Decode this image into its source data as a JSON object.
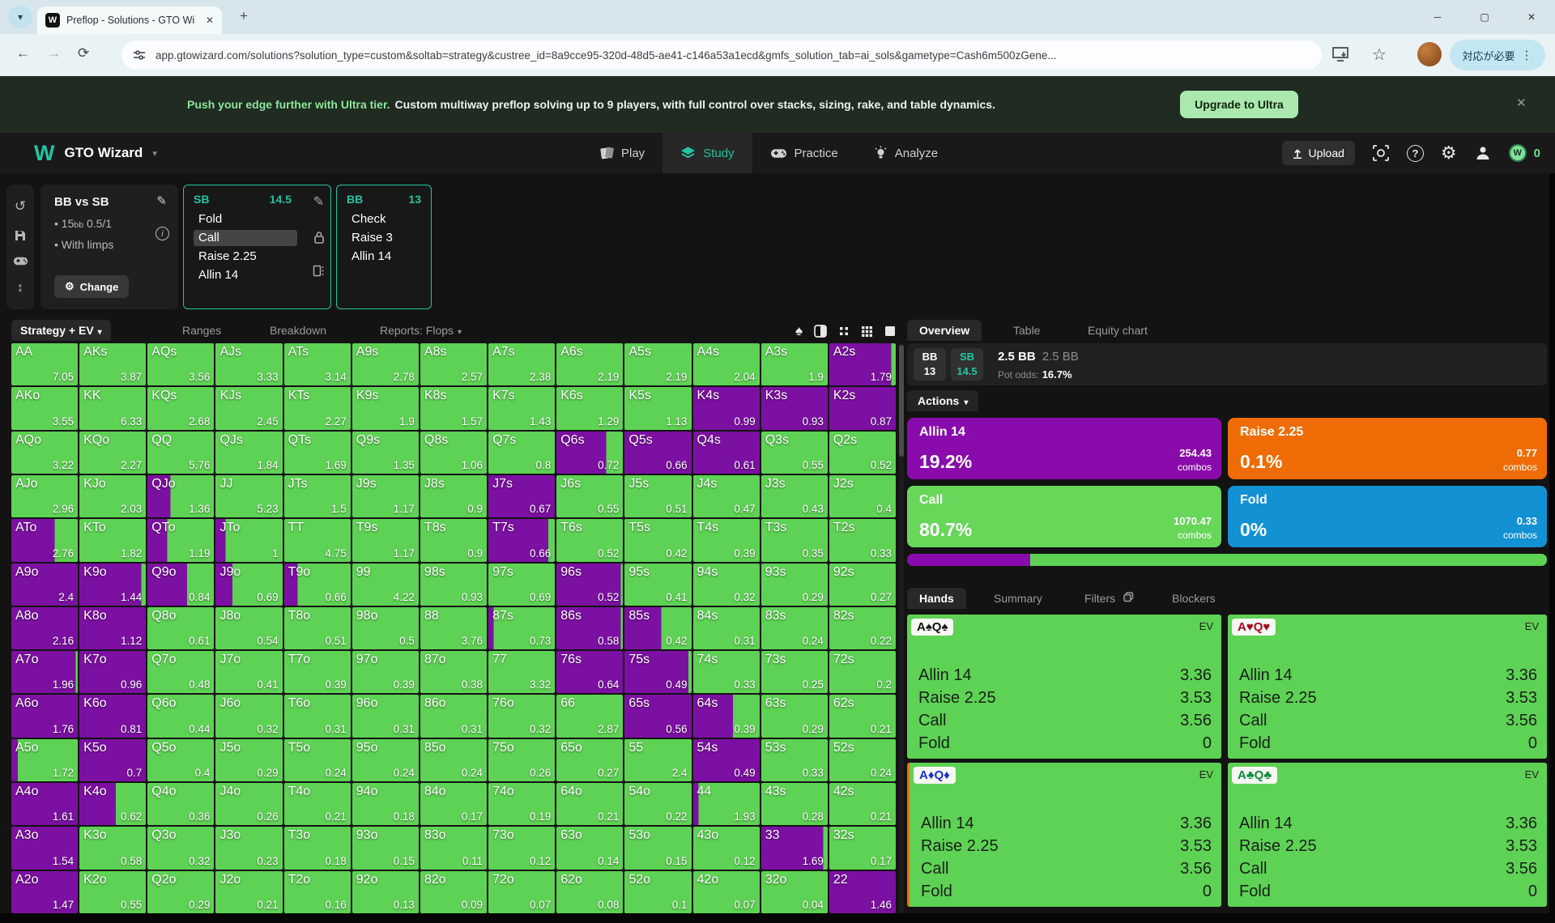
{
  "icons": {
    "caret": "▾",
    "close": "✕",
    "plus": "+",
    "minimize": "─",
    "maximize": "▢",
    "back": "←",
    "forward": "→",
    "reload": "⟳",
    "star": "☆",
    "menu_dots": "⋮",
    "history": "↺",
    "updown": "↕",
    "pencil": "✎",
    "gear": "⚙",
    "bullet": "•",
    "info": "i",
    "question": "?",
    "favicon_w": "W",
    "brand_w": "W",
    "coin_w": "W"
  },
  "browser": {
    "tab_title": "Preflop - Solutions - GTO Wizar",
    "url": "app.gtowizard.com/solutions?solution_type=custom&soltab=strategy&custree_id=8a9cce95-320d-48d5-ae41-c146a53a1ecd&gmfs_solution_tab=ai_sols&gametype=Cash6m500zGene...",
    "attention": "対応が必要"
  },
  "banner": {
    "highlight": "Push your edge further with Ultra tier.",
    "message": "Custom multiway preflop solving up to 9 players, with full control over stacks, sizing, rake, and table dynamics.",
    "cta": "Upgrade to Ultra"
  },
  "header": {
    "brand": "GTO Wizard",
    "nav": [
      "Play",
      "Study",
      "Practice",
      "Analyze"
    ],
    "upload": "Upload",
    "coins": "0"
  },
  "config": {
    "title": "BB vs SB",
    "stack": "15",
    "stack_unit": "bb",
    "blinds": "0.5/1",
    "option": "With limps",
    "change": "Change"
  },
  "sb_panel": {
    "pos": "SB",
    "stack": "14.5",
    "actions": [
      "Fold",
      "Call",
      "Raise 2.25",
      "Allin 14"
    ],
    "selected": "Call"
  },
  "bb_panel": {
    "pos": "BB",
    "stack": "13",
    "actions": [
      "Check",
      "Raise 3",
      "Allin 14"
    ]
  },
  "toolbar": {
    "tabs": [
      "Strategy + EV",
      "Ranges",
      "Breakdown",
      "Reports: Flops"
    ]
  },
  "matrix": {
    "legend": {
      "call_color": "#5ed254",
      "allin_color": "#7c10a2"
    },
    "cells": [
      [
        "AA",
        "7.05",
        0
      ],
      [
        "AKs",
        "3.87",
        0
      ],
      [
        "AQs",
        "3.56",
        0
      ],
      [
        "AJs",
        "3.33",
        0
      ],
      [
        "ATs",
        "3.14",
        0
      ],
      [
        "A9s",
        "2.78",
        0
      ],
      [
        "A8s",
        "2.57",
        0
      ],
      [
        "A7s",
        "2.38",
        0
      ],
      [
        "A6s",
        "2.19",
        0
      ],
      [
        "A5s",
        "2.19",
        0
      ],
      [
        "A4s",
        "2.04",
        0
      ],
      [
        "A3s",
        "1.9",
        0
      ],
      [
        "A2s",
        "1.79",
        0.93
      ],
      [
        "AKo",
        "3.55",
        0
      ],
      [
        "KK",
        "6.33",
        0
      ],
      [
        "KQs",
        "2.68",
        0
      ],
      [
        "KJs",
        "2.45",
        0
      ],
      [
        "KTs",
        "2.27",
        0
      ],
      [
        "K9s",
        "1.9",
        0
      ],
      [
        "K8s",
        "1.57",
        0
      ],
      [
        "K7s",
        "1.43",
        0
      ],
      [
        "K6s",
        "1.29",
        0
      ],
      [
        "K5s",
        "1.13",
        0
      ],
      [
        "K4s",
        "0.99",
        1
      ],
      [
        "K3s",
        "0.93",
        1
      ],
      [
        "K2s",
        "0.87",
        1
      ],
      [
        "AQo",
        "3.22",
        0
      ],
      [
        "KQo",
        "2.27",
        0
      ],
      [
        "QQ",
        "5.76",
        0
      ],
      [
        "QJs",
        "1.84",
        0
      ],
      [
        "QTs",
        "1.69",
        0
      ],
      [
        "Q9s",
        "1.35",
        0
      ],
      [
        "Q8s",
        "1.06",
        0
      ],
      [
        "Q7s",
        "0.8",
        0
      ],
      [
        "Q6s",
        "0.72",
        0.75
      ],
      [
        "Q5s",
        "0.66",
        1
      ],
      [
        "Q4s",
        "0.61",
        1
      ],
      [
        "Q3s",
        "0.55",
        0
      ],
      [
        "Q2s",
        "0.52",
        0
      ],
      [
        "AJo",
        "2.96",
        0
      ],
      [
        "KJo",
        "2.03",
        0
      ],
      [
        "QJo",
        "1.36",
        0.35
      ],
      [
        "JJ",
        "5.23",
        0
      ],
      [
        "JTs",
        "1.5",
        0
      ],
      [
        "J9s",
        "1.17",
        0
      ],
      [
        "J8s",
        "0.9",
        0
      ],
      [
        "J7s",
        "0.67",
        1
      ],
      [
        "J6s",
        "0.55",
        0
      ],
      [
        "J5s",
        "0.51",
        0
      ],
      [
        "J4s",
        "0.47",
        0
      ],
      [
        "J3s",
        "0.43",
        0
      ],
      [
        "J2s",
        "0.4",
        0
      ],
      [
        "ATo",
        "2.76",
        0.65
      ],
      [
        "KTo",
        "1.82",
        0
      ],
      [
        "QTo",
        "1.19",
        0.3
      ],
      [
        "JTo",
        "1",
        0.15
      ],
      [
        "TT",
        "4.75",
        0
      ],
      [
        "T9s",
        "1.17",
        0
      ],
      [
        "T8s",
        "0.9",
        0
      ],
      [
        "T7s",
        "0.66",
        0.9
      ],
      [
        "T6s",
        "0.52",
        0
      ],
      [
        "T5s",
        "0.42",
        0
      ],
      [
        "T4s",
        "0.39",
        0
      ],
      [
        "T3s",
        "0.35",
        0
      ],
      [
        "T2s",
        "0.33",
        0
      ],
      [
        "A9o",
        "2.4",
        1
      ],
      [
        "K9o",
        "1.44",
        0.93
      ],
      [
        "Q9o",
        "0.84",
        0.6
      ],
      [
        "J9o",
        "0.69",
        0.25
      ],
      [
        "T9o",
        "0.66",
        0.2
      ],
      [
        "99",
        "4.22",
        0
      ],
      [
        "98s",
        "0.93",
        0
      ],
      [
        "97s",
        "0.69",
        0
      ],
      [
        "96s",
        "0.52",
        0.97
      ],
      [
        "95s",
        "0.41",
        0
      ],
      [
        "94s",
        "0.32",
        0
      ],
      [
        "93s",
        "0.29",
        0
      ],
      [
        "92s",
        "0.27",
        0
      ],
      [
        "A8o",
        "2.16",
        1
      ],
      [
        "K8o",
        "1.12",
        1
      ],
      [
        "Q8o",
        "0.61",
        0
      ],
      [
        "J8o",
        "0.54",
        0
      ],
      [
        "T8o",
        "0.51",
        0
      ],
      [
        "98o",
        "0.5",
        0
      ],
      [
        "88",
        "3.76",
        0
      ],
      [
        "87s",
        "0.73",
        0.08
      ],
      [
        "86s",
        "0.58",
        0.97
      ],
      [
        "85s",
        "0.42",
        0.55
      ],
      [
        "84s",
        "0.31",
        0
      ],
      [
        "83s",
        "0.24",
        0
      ],
      [
        "82s",
        "0.22",
        0
      ],
      [
        "A7o",
        "1.96",
        0.97
      ],
      [
        "K7o",
        "0.96",
        1
      ],
      [
        "Q7o",
        "0.48",
        0
      ],
      [
        "J7o",
        "0.41",
        0
      ],
      [
        "T7o",
        "0.39",
        0
      ],
      [
        "97o",
        "0.39",
        0
      ],
      [
        "87o",
        "0.38",
        0
      ],
      [
        "77",
        "3.32",
        0
      ],
      [
        "76s",
        "0.64",
        1
      ],
      [
        "75s",
        "0.49",
        0.95
      ],
      [
        "74s",
        "0.33",
        0
      ],
      [
        "73s",
        "0.25",
        0
      ],
      [
        "72s",
        "0.2",
        0
      ],
      [
        "A6o",
        "1.76",
        1
      ],
      [
        "K6o",
        "0.81",
        1
      ],
      [
        "Q6o",
        "0.44",
        0
      ],
      [
        "J6o",
        "0.32",
        0
      ],
      [
        "T6o",
        "0.31",
        0
      ],
      [
        "96o",
        "0.31",
        0
      ],
      [
        "86o",
        "0.31",
        0
      ],
      [
        "76o",
        "0.32",
        0
      ],
      [
        "66",
        "2.87",
        0
      ],
      [
        "65s",
        "0.56",
        1
      ],
      [
        "64s",
        "0.39",
        0.6
      ],
      [
        "63s",
        "0.29",
        0
      ],
      [
        "62s",
        "0.21",
        0
      ],
      [
        "A5o",
        "1.72",
        0.1
      ],
      [
        "K5o",
        "0.7",
        1
      ],
      [
        "Q5o",
        "0.4",
        0
      ],
      [
        "J5o",
        "0.29",
        0
      ],
      [
        "T5o",
        "0.24",
        0
      ],
      [
        "95o",
        "0.24",
        0
      ],
      [
        "85o",
        "0.24",
        0
      ],
      [
        "75o",
        "0.26",
        0
      ],
      [
        "65o",
        "0.27",
        0
      ],
      [
        "55",
        "2.4",
        0
      ],
      [
        "54s",
        "0.49",
        1
      ],
      [
        "53s",
        "0.33",
        0
      ],
      [
        "52s",
        "0.24",
        0
      ],
      [
        "A4o",
        "1.61",
        1
      ],
      [
        "K4o",
        "0.62",
        0.55
      ],
      [
        "Q4o",
        "0.36",
        0
      ],
      [
        "J4o",
        "0.26",
        0
      ],
      [
        "T4o",
        "0.21",
        0
      ],
      [
        "94o",
        "0.18",
        0
      ],
      [
        "84o",
        "0.17",
        0
      ],
      [
        "74o",
        "0.19",
        0
      ],
      [
        "64o",
        "0.21",
        0
      ],
      [
        "54o",
        "0.22",
        0
      ],
      [
        "44",
        "1.93",
        0.08
      ],
      [
        "43s",
        "0.28",
        0
      ],
      [
        "42s",
        "0.21",
        0
      ],
      [
        "A3o",
        "1.54",
        1
      ],
      [
        "K3o",
        "0.58",
        0
      ],
      [
        "Q3o",
        "0.32",
        0
      ],
      [
        "J3o",
        "0.23",
        0
      ],
      [
        "T3o",
        "0.18",
        0
      ],
      [
        "93o",
        "0.15",
        0
      ],
      [
        "83o",
        "0.11",
        0
      ],
      [
        "73o",
        "0.12",
        0
      ],
      [
        "63o",
        "0.14",
        0
      ],
      [
        "53o",
        "0.15",
        0
      ],
      [
        "43o",
        "0.12",
        0
      ],
      [
        "33",
        "1.69",
        0.93
      ],
      [
        "32s",
        "0.17",
        0
      ],
      [
        "A2o",
        "1.47",
        1
      ],
      [
        "K2o",
        "0.55",
        0
      ],
      [
        "Q2o",
        "0.29",
        0
      ],
      [
        "J2o",
        "0.21",
        0
      ],
      [
        "T2o",
        "0.16",
        0
      ],
      [
        "92o",
        "0.13",
        0
      ],
      [
        "82o",
        "0.09",
        0
      ],
      [
        "72o",
        "0.07",
        0
      ],
      [
        "62o",
        "0.08",
        0
      ],
      [
        "52o",
        "0.1",
        0
      ],
      [
        "42o",
        "0.07",
        0
      ],
      [
        "32o",
        "0.04",
        0
      ],
      [
        "22",
        "1.46",
        1
      ]
    ]
  },
  "overview": {
    "tabs": [
      "Overview",
      "Table",
      "Equity chart"
    ],
    "bb_pos": "BB",
    "bb_stack": "13",
    "sb_pos": "SB",
    "sb_stack": "14.5",
    "pot": "2.5 BB",
    "pot_total": "2.5 BB",
    "pot_odds_label": "Pot odds:",
    "pot_odds": "16.7%",
    "actions_label": "Actions",
    "combos_label": "combos",
    "actions": [
      {
        "name": "Allin 14",
        "pct": "19.2%",
        "combos": "254.43",
        "color": "#8a0bab"
      },
      {
        "name": "Raise 2.25",
        "pct": "0.1%",
        "combos": "0.77",
        "color": "#ef6c04"
      },
      {
        "name": "Call",
        "pct": "80.7%",
        "combos": "1070.47",
        "color": "#67d659"
      },
      {
        "name": "Fold",
        "pct": "0%",
        "combos": "0.33",
        "color": "#1291d3"
      }
    ],
    "bar": [
      {
        "color": "#8a0bab",
        "pct": 19.2
      },
      {
        "color": "#5ed254",
        "pct": 80.8
      }
    ]
  },
  "hands": {
    "tabs": [
      "Hands",
      "Summary",
      "Filters",
      "Blockers"
    ],
    "ev_label": "EV",
    "cards": [
      {
        "label": "A♠Q♠",
        "suit_color": "#151515",
        "accent": false,
        "rows": [
          [
            "Allin 14",
            "3.36"
          ],
          [
            "Raise 2.25",
            "3.53"
          ],
          [
            "Call",
            "3.56"
          ],
          [
            "Fold",
            "0"
          ]
        ]
      },
      {
        "label": "A♥Q♥",
        "suit_color": "#a5081f",
        "accent": false,
        "rows": [
          [
            "Allin 14",
            "3.36"
          ],
          [
            "Raise 2.25",
            "3.53"
          ],
          [
            "Call",
            "3.56"
          ],
          [
            "Fold",
            "0"
          ]
        ]
      },
      {
        "label": "A♦Q♦",
        "suit_color": "#1b2ed1",
        "accent": true,
        "rows": [
          [
            "Allin 14",
            "3.36"
          ],
          [
            "Raise 2.25",
            "3.53"
          ],
          [
            "Call",
            "3.56"
          ],
          [
            "Fold",
            "0"
          ]
        ]
      },
      {
        "label": "A♣Q♣",
        "suit_color": "#0a8c3e",
        "accent": false,
        "rows": [
          [
            "Allin 14",
            "3.36"
          ],
          [
            "Raise 2.25",
            "3.53"
          ],
          [
            "Call",
            "3.56"
          ],
          [
            "Fold",
            "0"
          ]
        ]
      }
    ]
  }
}
